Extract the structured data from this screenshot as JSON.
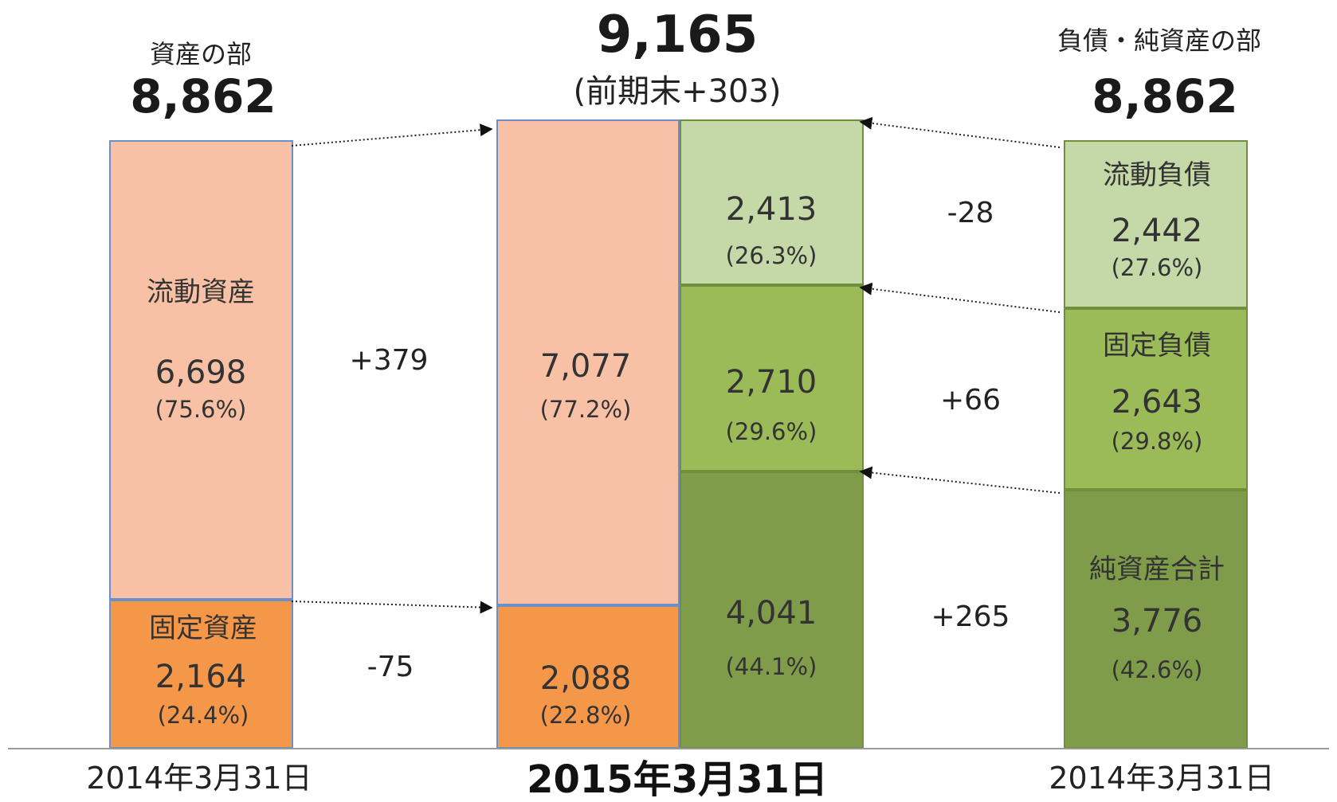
{
  "chart_data": {
    "type": "bar",
    "unit": "",
    "colors": {
      "current_assets": "#f8c1a6",
      "fixed_assets": "#f59748",
      "current_liabilities": "#c4d8a8",
      "fixed_liabilities": "#9bbb59",
      "net_assets": "#7f9c4a",
      "asset_border": "#6d8fc7",
      "liab_border": "#6f8f3a"
    },
    "left": {
      "title": "資産の部",
      "total": "8,862",
      "date": "2014年3月31日",
      "segments": [
        {
          "key": "current_assets",
          "label": "流動資産",
          "value": 6698,
          "value_text": "6,698",
          "pct_text": "(75.6%)"
        },
        {
          "key": "fixed_assets",
          "label": "固定資産",
          "value": 2164,
          "value_text": "2,164",
          "pct_text": "(24.4%)"
        }
      ]
    },
    "center": {
      "total": "9,165",
      "change_text": "(前期末+303)",
      "date": "2015年3月31日",
      "assets": [
        {
          "key": "current_assets",
          "value": 7077,
          "value_text": "7,077",
          "pct_text": "(77.2%)"
        },
        {
          "key": "fixed_assets",
          "value": 2088,
          "value_text": "2,088",
          "pct_text": "(22.8%)"
        }
      ],
      "liabilities": [
        {
          "key": "current_liabilities",
          "value": 2413,
          "value_text": "2,413",
          "pct_text": "(26.3%)"
        },
        {
          "key": "fixed_liabilities",
          "value": 2710,
          "value_text": "2,710",
          "pct_text": "(29.6%)"
        },
        {
          "key": "net_assets",
          "value": 4041,
          "value_text": "4,041",
          "pct_text": "(44.1%)"
        }
      ]
    },
    "right": {
      "title": "負債・純資産の部",
      "total": "8,862",
      "date": "2014年3月31日",
      "segments": [
        {
          "key": "current_liabilities",
          "label": "流動負債",
          "value": 2442,
          "value_text": "2,442",
          "pct_text": "(27.6%)"
        },
        {
          "key": "fixed_liabilities",
          "label": "固定負債",
          "value": 2643,
          "value_text": "2,643",
          "pct_text": "(29.8%)"
        },
        {
          "key": "net_assets",
          "label": "純資産合計",
          "value": 3776,
          "value_text": "3,776",
          "pct_text": "(42.6%)"
        }
      ]
    },
    "changes": {
      "current_assets": "+379",
      "fixed_assets": "-75",
      "current_liabilities": "-28",
      "fixed_liabilities": "+66",
      "net_assets": "+265"
    }
  }
}
